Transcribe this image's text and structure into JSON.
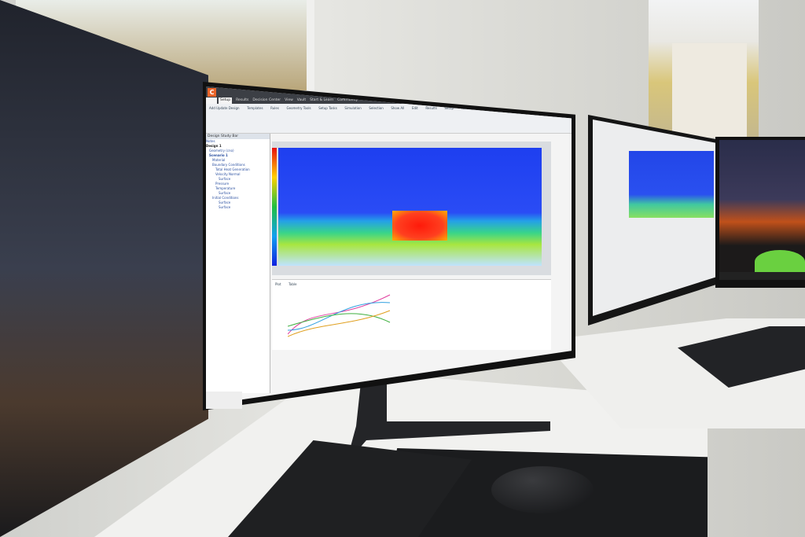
{
  "app": {
    "logo_letter": "C",
    "tabs": [
      "Setup",
      "Results",
      "Decision Center",
      "View",
      "Vault",
      "Start & Learn",
      "Community"
    ],
    "ribbon": [
      "Add Update Design",
      "Templates",
      "Rules",
      "Geometry Tools",
      "Setup Tasks",
      "Simulation",
      "Selection",
      "Show All",
      "Edit",
      "Results",
      "Setup",
      "Filters"
    ],
    "panel_title": "Design Study Bar",
    "tree": [
      "Notes",
      "Design 1",
      "Geometry (cno)",
      "Scenario 1",
      "Material",
      "Boundary Conditions",
      "Total Heat Generation",
      "Velocity Normal",
      "Surface",
      "Pressure",
      "Temperature",
      "Surface",
      "Initial Conditions",
      "Surface",
      "Surface"
    ],
    "graph_tabs": [
      "Plot",
      "Table"
    ]
  },
  "colors": {
    "accent": "#e8642a",
    "sim_blue": "#2a4cf5",
    "hot": "#ff1a0a"
  }
}
